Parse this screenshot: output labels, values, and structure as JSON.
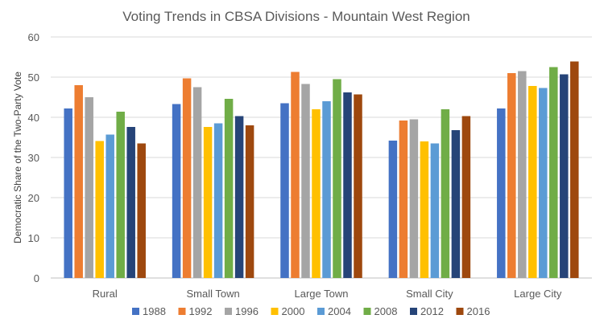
{
  "chart_data": {
    "type": "bar",
    "title": "Voting Trends in CBSA Divisions - Mountain West Region",
    "xlabel": "",
    "ylabel": "Democratic Share of the Two-Party Vote",
    "ylim": [
      0,
      60
    ],
    "yticks": [
      0,
      10,
      20,
      30,
      40,
      50,
      60
    ],
    "grid": true,
    "legend_position": "bottom",
    "categories": [
      "Rural",
      "Small Town",
      "Large Town",
      "Small City",
      "Large City"
    ],
    "series": [
      {
        "name": "1988",
        "color": "#4472C4",
        "values": [
          42.2,
          43.3,
          43.5,
          34.2,
          42.2
        ]
      },
      {
        "name": "1992",
        "color": "#ED7D31",
        "values": [
          48.0,
          49.7,
          51.3,
          39.2,
          51.0
        ]
      },
      {
        "name": "1996",
        "color": "#A5A5A5",
        "values": [
          45.0,
          47.5,
          48.3,
          39.5,
          51.5
        ]
      },
      {
        "name": "2000",
        "color": "#FFC000",
        "values": [
          34.1,
          37.6,
          42.0,
          34.0,
          47.8
        ]
      },
      {
        "name": "2004",
        "color": "#5B9BD5",
        "values": [
          35.7,
          38.5,
          44.0,
          33.5,
          47.3
        ]
      },
      {
        "name": "2008",
        "color": "#70AD47",
        "values": [
          41.4,
          44.6,
          49.5,
          42.0,
          52.5
        ]
      },
      {
        "name": "2012",
        "color": "#264478",
        "values": [
          37.6,
          40.3,
          46.2,
          36.8,
          50.7
        ]
      },
      {
        "name": "2016",
        "color": "#9E480E",
        "values": [
          33.5,
          38.0,
          45.7,
          40.3,
          53.9
        ]
      }
    ]
  }
}
